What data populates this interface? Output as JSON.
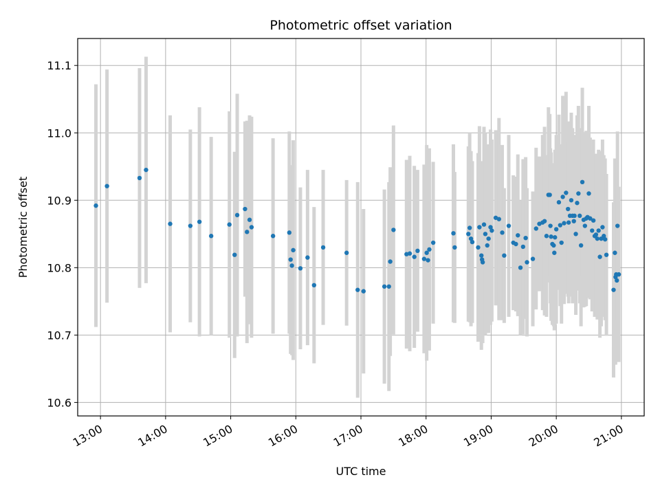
{
  "chart_data": {
    "type": "scatter",
    "title": "Photometric offset variation",
    "xlabel": "UTC time",
    "ylabel": "Photometric offset",
    "x_unit": "hours",
    "xlim": [
      12.65,
      21.35
    ],
    "ylim": [
      10.58,
      11.14
    ],
    "x_ticks": [
      13,
      14,
      15,
      16,
      17,
      18,
      19,
      20,
      21
    ],
    "x_tick_labels": [
      "13:00",
      "14:00",
      "15:00",
      "16:00",
      "17:00",
      "18:00",
      "19:00",
      "20:00",
      "21:00"
    ],
    "y_ticks": [
      10.6,
      10.7,
      10.8,
      10.9,
      11.0,
      11.1
    ],
    "y_tick_labels": [
      "10.6",
      "10.7",
      "10.8",
      "10.9",
      "11.0",
      "11.1"
    ],
    "grid": true,
    "colors": {
      "point": "#1f77b4",
      "errorbar": "#d3d3d3",
      "grid": "#b0b0b0"
    },
    "points": [
      [
        12.93,
        10.892,
        0.18
      ],
      [
        13.1,
        10.921,
        0.173
      ],
      [
        13.6,
        10.933,
        0.163
      ],
      [
        13.7,
        10.945,
        0.168
      ],
      [
        14.07,
        10.865,
        0.161
      ],
      [
        14.38,
        10.862,
        0.143
      ],
      [
        14.52,
        10.868,
        0.17
      ],
      [
        14.7,
        10.847,
        0.147
      ],
      [
        14.98,
        10.864,
        0.168
      ],
      [
        15.06,
        10.819,
        0.153
      ],
      [
        15.1,
        10.878,
        0.18
      ],
      [
        15.22,
        10.887,
        0.13
      ],
      [
        15.25,
        10.853,
        0.165
      ],
      [
        15.29,
        10.871,
        0.155
      ],
      [
        15.32,
        10.86,
        0.164
      ],
      [
        15.65,
        10.847,
        0.145
      ],
      [
        15.9,
        10.852,
        0.15
      ],
      [
        15.92,
        10.812,
        0.14
      ],
      [
        15.94,
        10.803,
        0.133
      ],
      [
        15.96,
        10.826,
        0.163
      ],
      [
        16.07,
        10.799,
        0.12
      ],
      [
        16.18,
        10.815,
        0.13
      ],
      [
        16.28,
        10.774,
        0.116
      ],
      [
        16.42,
        10.83,
        0.115
      ],
      [
        16.78,
        10.822,
        0.108
      ],
      [
        16.95,
        10.767,
        0.16
      ],
      [
        17.04,
        10.765,
        0.122
      ],
      [
        17.36,
        10.772,
        0.144
      ],
      [
        17.43,
        10.772,
        0.155
      ],
      [
        17.45,
        10.809,
        0.14
      ],
      [
        17.5,
        10.856,
        0.155
      ],
      [
        17.7,
        10.82,
        0.14
      ],
      [
        17.75,
        10.821,
        0.145
      ],
      [
        17.82,
        10.816,
        0.135
      ],
      [
        17.87,
        10.825,
        0.12
      ],
      [
        17.97,
        10.813,
        0.14
      ],
      [
        18.01,
        10.822,
        0.16
      ],
      [
        18.03,
        10.811,
        0.12
      ],
      [
        18.05,
        10.827,
        0.15
      ],
      [
        18.11,
        10.837,
        0.12
      ],
      [
        18.42,
        10.851,
        0.132
      ],
      [
        18.44,
        10.83,
        0.112
      ],
      [
        18.65,
        10.85,
        0.13
      ],
      [
        18.67,
        10.859,
        0.14
      ],
      [
        18.69,
        10.843,
        0.13
      ],
      [
        18.71,
        10.838,
        0.12
      ],
      [
        18.8,
        10.83,
        0.14
      ],
      [
        18.82,
        10.86,
        0.15
      ],
      [
        18.85,
        10.818,
        0.14
      ],
      [
        18.86,
        10.812,
        0.12
      ],
      [
        18.87,
        10.808,
        0.12
      ],
      [
        18.89,
        10.864,
        0.145
      ],
      [
        18.91,
        10.85,
        0.15
      ],
      [
        18.94,
        10.833,
        0.13
      ],
      [
        18.96,
        10.843,
        0.14
      ],
      [
        18.99,
        10.86,
        0.145
      ],
      [
        19.01,
        10.855,
        0.135
      ],
      [
        19.07,
        10.874,
        0.13
      ],
      [
        19.12,
        10.872,
        0.15
      ],
      [
        19.17,
        10.852,
        0.13
      ],
      [
        19.2,
        10.818,
        0.1
      ],
      [
        19.27,
        10.862,
        0.135
      ],
      [
        19.34,
        10.837,
        0.1
      ],
      [
        19.38,
        10.835,
        0.1
      ],
      [
        19.41,
        10.848,
        0.12
      ],
      [
        19.45,
        10.8,
        0.1
      ],
      [
        19.49,
        10.831,
        0.13
      ],
      [
        19.53,
        10.844,
        0.12
      ],
      [
        19.55,
        10.808,
        0.11
      ],
      [
        19.64,
        10.813,
        0.1
      ],
      [
        19.69,
        10.858,
        0.12
      ],
      [
        19.74,
        10.865,
        0.1
      ],
      [
        19.79,
        10.867,
        0.13
      ],
      [
        19.82,
        10.869,
        0.14
      ],
      [
        19.85,
        10.847,
        0.12
      ],
      [
        19.88,
        10.908,
        0.13
      ],
      [
        19.9,
        10.908,
        0.12
      ],
      [
        19.91,
        10.862,
        0.115
      ],
      [
        19.92,
        10.846,
        0.125
      ],
      [
        19.94,
        10.835,
        0.12
      ],
      [
        19.96,
        10.833,
        0.12
      ],
      [
        19.97,
        10.822,
        0.115
      ],
      [
        19.98,
        10.845,
        0.13
      ],
      [
        20.0,
        10.857,
        0.14
      ],
      [
        20.04,
        10.897,
        0.13
      ],
      [
        20.06,
        10.863,
        0.12
      ],
      [
        20.08,
        10.837,
        0.12
      ],
      [
        20.1,
        10.905,
        0.15
      ],
      [
        20.12,
        10.866,
        0.12
      ],
      [
        20.15,
        10.911,
        0.15
      ],
      [
        20.18,
        10.887,
        0.13
      ],
      [
        20.19,
        10.867,
        0.12
      ],
      [
        20.21,
        10.877,
        0.12
      ],
      [
        20.23,
        10.9,
        0.13
      ],
      [
        20.25,
        10.877,
        0.13
      ],
      [
        20.27,
        10.869,
        0.12
      ],
      [
        20.28,
        10.877,
        0.12
      ],
      [
        20.3,
        10.85,
        0.12
      ],
      [
        20.32,
        10.896,
        0.13
      ],
      [
        20.34,
        10.91,
        0.13
      ],
      [
        20.36,
        10.877,
        0.13
      ],
      [
        20.38,
        10.833,
        0.12
      ],
      [
        20.4,
        10.927,
        0.14
      ],
      [
        20.42,
        10.871,
        0.13
      ],
      [
        20.44,
        10.862,
        0.12
      ],
      [
        20.46,
        10.873,
        0.13
      ],
      [
        20.48,
        10.875,
        0.12
      ],
      [
        20.5,
        10.91,
        0.13
      ],
      [
        20.52,
        10.873,
        0.12
      ],
      [
        20.55,
        10.855,
        0.12
      ],
      [
        20.57,
        10.87,
        0.12
      ],
      [
        20.59,
        10.847,
        0.12
      ],
      [
        20.61,
        10.849,
        0.12
      ],
      [
        20.63,
        10.843,
        0.12
      ],
      [
        20.65,
        10.855,
        0.12
      ],
      [
        20.67,
        10.816,
        0.12
      ],
      [
        20.69,
        10.843,
        0.13
      ],
      [
        20.71,
        10.86,
        0.13
      ],
      [
        20.73,
        10.847,
        0.12
      ],
      [
        20.75,
        10.842,
        0.12
      ],
      [
        20.77,
        10.819,
        0.12
      ],
      [
        20.88,
        10.767,
        0.13
      ],
      [
        20.9,
        10.822,
        0.14
      ],
      [
        20.91,
        10.786,
        0.13
      ],
      [
        20.92,
        10.79,
        0.12
      ],
      [
        20.93,
        10.781,
        0.12
      ],
      [
        20.94,
        10.862,
        0.14
      ],
      [
        20.96,
        10.79,
        0.13
      ]
    ]
  }
}
